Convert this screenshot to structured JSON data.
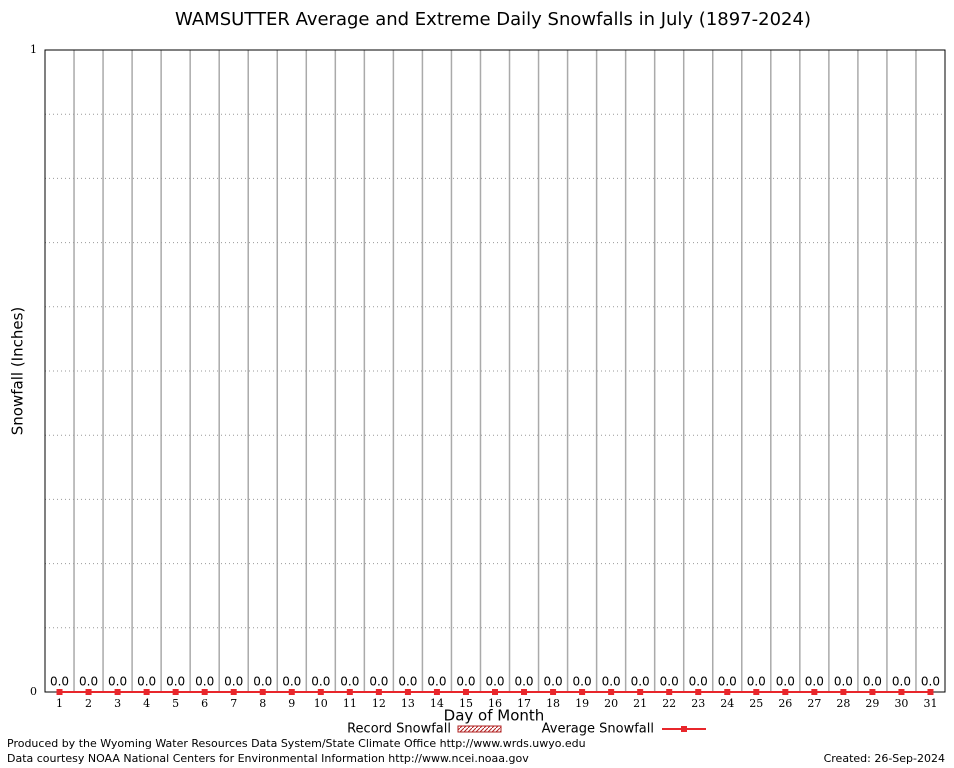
{
  "chart_data": {
    "type": "bar-line",
    "title": "WAMSUTTER Average and Extreme Daily Snowfalls in July (1897-2024)",
    "x_label": "Day of Month",
    "y_label": "Snowfall (Inches)",
    "categories": [
      1,
      2,
      3,
      4,
      5,
      6,
      7,
      8,
      9,
      10,
      11,
      12,
      13,
      14,
      15,
      16,
      17,
      18,
      19,
      20,
      21,
      22,
      23,
      24,
      25,
      26,
      27,
      28,
      29,
      30,
      31
    ],
    "series": [
      {
        "name": "Record Snowfall",
        "color": "#b22222",
        "values": [
          0,
          0,
          0,
          0,
          0,
          0,
          0,
          0,
          0,
          0,
          0,
          0,
          0,
          0,
          0,
          0,
          0,
          0,
          0,
          0,
          0,
          0,
          0,
          0,
          0,
          0,
          0,
          0,
          0,
          0,
          0
        ],
        "value_labels": [
          "0.0",
          "0.0",
          "0.0",
          "0.0",
          "0.0",
          "0.0",
          "0.0",
          "0.0",
          "0.0",
          "0.0",
          "0.0",
          "0.0",
          "0.0",
          "0.0",
          "0.0",
          "0.0",
          "0.0",
          "0.0",
          "0.0",
          "0.0",
          "0.0",
          "0.0",
          "0.0",
          "0.0",
          "0.0",
          "0.0",
          "0.0",
          "0.0",
          "0.0",
          "0.0",
          "0.0"
        ]
      },
      {
        "name": "Average Snowfall",
        "color": "#e8262b",
        "values": [
          0,
          0,
          0,
          0,
          0,
          0,
          0,
          0,
          0,
          0,
          0,
          0,
          0,
          0,
          0,
          0,
          0,
          0,
          0,
          0,
          0,
          0,
          0,
          0,
          0,
          0,
          0,
          0,
          0,
          0,
          0
        ]
      }
    ],
    "ylim": [
      0,
      1
    ],
    "yticks": [
      0,
      1
    ],
    "minor_yticks": [
      0.1,
      0.2,
      0.3,
      0.4,
      0.5,
      0.6,
      0.7,
      0.8,
      0.9
    ],
    "grid": true,
    "footer": {
      "produced": "Produced by the Wyoming Water Resources Data System/State Climate Office http://www.wrds.uwyo.edu",
      "courtesy": "Data courtesy NOAA National Centers for Environmental Information http://www.ncei.noaa.gov",
      "created": "Created: 26-Sep-2024"
    }
  }
}
